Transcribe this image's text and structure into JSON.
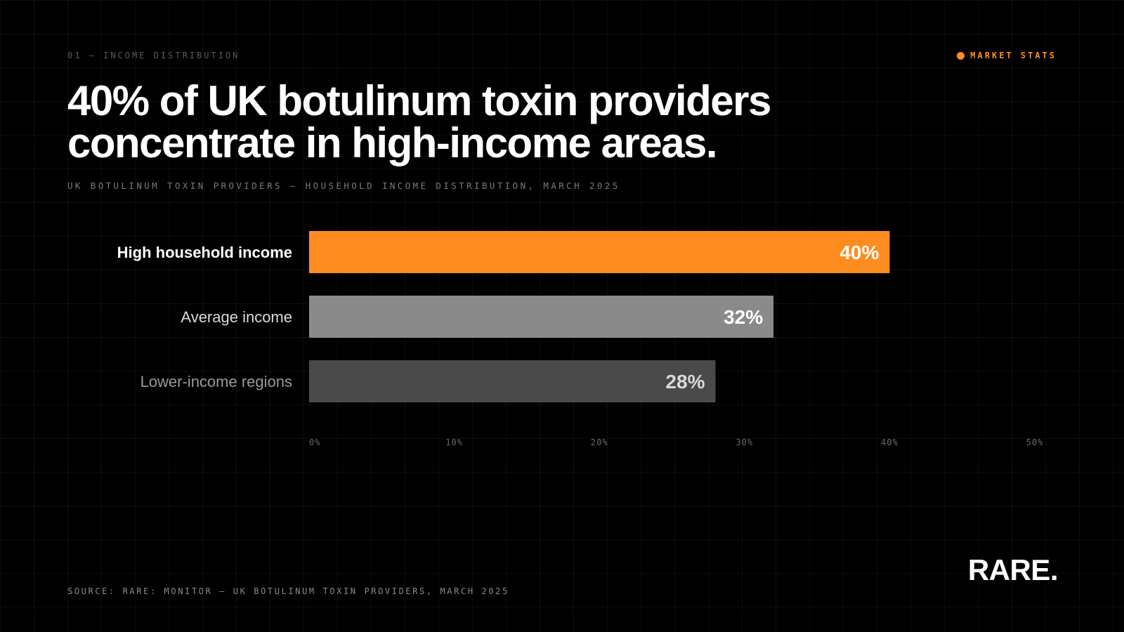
{
  "header": {
    "section_label": "01 — INCOME DISTRIBUTION",
    "badge_label": "MARKET STATS",
    "title_line_1": "40% of UK botulinum toxin providers",
    "title_line_2": "concentrate in high-income areas.",
    "subtitle": "UK BOTULINUM TOXIN PROVIDERS — HOUSEHOLD INCOME DISTRIBUTION, MARCH 2025"
  },
  "footer": {
    "source": "SOURCE: RARE: MONITOR — UK BOTULINUM TOXIN PROVIDERS, MARCH 2025",
    "logo": "RARE."
  },
  "colors": {
    "background": "#000000",
    "accent": "#ff8c1f"
  },
  "chart_data": {
    "type": "bar",
    "orientation": "horizontal",
    "categories": [
      "High household income",
      "Average income",
      "Lower-income regions"
    ],
    "values": [
      40,
      32,
      28
    ],
    "value_labels": [
      "40%",
      "32%",
      "28%"
    ],
    "bar_colors": [
      "#ff8c1f",
      "#8a8a8a",
      "#4a4a4a"
    ],
    "label_colors": [
      "#ffffff",
      "#d9d9d9",
      "#9a9a9a"
    ],
    "value_label_colors": [
      "#ffffff",
      "#ffffff",
      "#d9d9d9"
    ],
    "xlim": [
      0,
      50
    ],
    "x_ticks": [
      0,
      10,
      20,
      30,
      40,
      50
    ],
    "x_tick_labels": [
      "0%",
      "10%",
      "20%",
      "30%",
      "40%",
      "50%"
    ],
    "title": "UK BOTULINUM TOXIN PROVIDERS — HOUSEHOLD INCOME DISTRIBUTION, MARCH 2025",
    "xlabel": "",
    "ylabel": "",
    "grid": true,
    "legend": false
  }
}
